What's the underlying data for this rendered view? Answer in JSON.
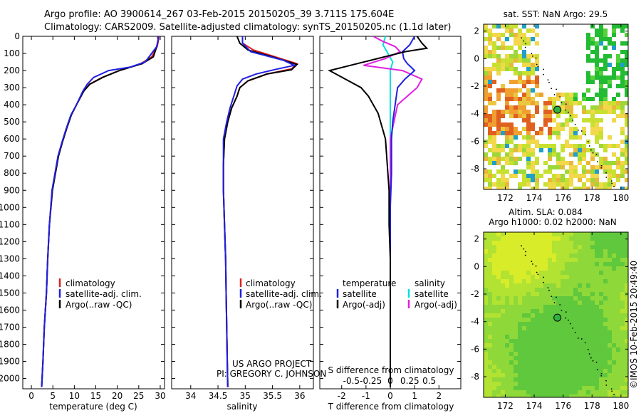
{
  "header": {
    "title": "Argo profile: AO 3900614_267 03-Feb-2015 20150205_39 3.711S 175.604E",
    "subtitle": "Climatology: CARS2009. Satellite-adjusted climatology: synTS_20150205.nc (1.1d later)"
  },
  "credit": {
    "line1": "US ARGO PROJECT",
    "line2": "PI: GREGORY C. JOHNSON"
  },
  "stamp": "©IMOS 10-Feb-2015 20:49:40",
  "colors": {
    "clim": "#e02020",
    "sat": "#2020e0",
    "argo": "#000000",
    "satS": "#00e0e0",
    "argoS": "#e020e0"
  },
  "depth_ticks": [
    0,
    100,
    200,
    300,
    400,
    500,
    600,
    700,
    800,
    900,
    1000,
    1100,
    1200,
    1300,
    1400,
    1500,
    1600,
    1700,
    1800,
    1900,
    2000
  ],
  "legend_profile": [
    "climatology",
    "satellite-adj. clim.",
    "Argo(..raw -QC)"
  ],
  "legend_diff": {
    "head_t": "temperature",
    "head_s": "salinity",
    "sat_t": "satellite",
    "argo_t": "Argo(-adj)",
    "sat_s": "satellite",
    "argo_s": "Argo(-adj)"
  },
  "chart_data": [
    {
      "type": "line",
      "xlabel": "temperature (deg C)",
      "xlim": [
        -2,
        31
      ],
      "ylim": [
        2060,
        0
      ],
      "xticks": [
        0,
        5,
        10,
        15,
        20,
        25,
        30
      ],
      "series": [
        {
          "name": "climatology",
          "x": [
            29.7,
            29.6,
            29.3,
            28.0,
            25.5,
            20.5,
            16.5,
            13.5,
            12.2,
            10.5,
            9.3,
            8.2,
            7.2,
            6.3,
            4.9,
            4.2,
            3.8,
            3.5,
            3.0,
            2.7,
            2.5,
            2.4
          ],
          "y": [
            0,
            20,
            60,
            120,
            160,
            200,
            240,
            280,
            320,
            400,
            460,
            540,
            620,
            700,
            900,
            1100,
            1300,
            1500,
            1700,
            1900,
            2000,
            2050
          ]
        },
        {
          "name": "satellite-adj. clim.",
          "x": [
            29.4,
            29.5,
            29.2,
            28.4,
            25.8,
            20.5,
            16.6,
            13.6,
            12.2,
            10.5,
            9.3,
            8.2,
            7.2,
            6.3,
            4.9,
            4.2,
            3.8,
            3.5,
            3.0,
            2.7,
            2.5,
            2.4
          ],
          "y": [
            0,
            20,
            60,
            120,
            160,
            200,
            240,
            280,
            320,
            400,
            460,
            540,
            620,
            700,
            900,
            1100,
            1300,
            1500,
            1700,
            1900,
            2000,
            2050
          ]
        },
        {
          "name": "Argo(..raw -QC)",
          "x": [
            29.5,
            29.5,
            29.2,
            26.5,
            23.0,
            18.0,
            14.5,
            13.0,
            12.0,
            10.5,
            9.2,
            8.1,
            7.1,
            6.2,
            4.8,
            4.2,
            3.8,
            3.5,
            3.0,
            2.7,
            2.5,
            2.4
          ],
          "y": [
            0,
            20,
            60,
            150,
            180,
            200,
            240,
            280,
            320,
            400,
            460,
            540,
            620,
            700,
            900,
            1100,
            1300,
            1500,
            1700,
            1900,
            2000,
            2050
          ]
        }
      ]
    },
    {
      "type": "line",
      "xlabel": "salinity",
      "xlim": [
        33.65,
        36.25
      ],
      "ylim": [
        2060,
        0
      ],
      "xticks": [
        34,
        34.5,
        35,
        35.5,
        36
      ],
      "series": [
        {
          "name": "climatology",
          "x": [
            34.95,
            34.95,
            35.15,
            35.55,
            35.95,
            35.85,
            35.4,
            35.05,
            34.9,
            34.85,
            34.75,
            34.68,
            34.62,
            34.6,
            34.6,
            34.62,
            34.64,
            34.65,
            34.66,
            34.67,
            34.68
          ],
          "y": [
            0,
            40,
            80,
            120,
            160,
            190,
            220,
            260,
            300,
            350,
            420,
            500,
            600,
            750,
            900,
            1100,
            1300,
            1500,
            1700,
            1900,
            2050
          ]
        },
        {
          "name": "satellite-adj. clim.",
          "x": [
            34.85,
            34.9,
            35.05,
            35.5,
            35.95,
            35.85,
            35.4,
            35.05,
            34.9,
            34.85,
            34.75,
            34.68,
            34.62,
            34.6,
            34.6,
            34.62,
            34.64,
            34.65,
            34.66,
            34.67,
            34.68
          ],
          "y": [
            0,
            40,
            80,
            120,
            165,
            195,
            220,
            260,
            300,
            350,
            420,
            500,
            600,
            750,
            900,
            1100,
            1300,
            1500,
            1700,
            1900,
            2050
          ]
        },
        {
          "name": "Argo(..raw -QC)",
          "x": [
            34.95,
            34.95,
            35.1,
            35.7,
            35.9,
            35.6,
            35.2,
            34.95,
            34.85,
            34.8,
            34.72,
            34.66,
            34.6,
            34.6,
            34.6,
            34.62,
            34.64,
            34.65,
            34.66,
            34.67,
            34.68
          ],
          "y": [
            0,
            40,
            90,
            140,
            170,
            190,
            220,
            250,
            290,
            340,
            420,
            500,
            600,
            750,
            900,
            1100,
            1300,
            1500,
            1700,
            1900,
            2050
          ]
        }
      ]
    },
    {
      "type": "line",
      "xlabel": "T difference from climatology",
      "x2label": "S difference from climatology",
      "xlim": [
        -2.9,
        2.9
      ],
      "ylim": [
        2060,
        0
      ],
      "xticks": [
        -2,
        -1,
        0,
        1,
        2
      ],
      "x2ticks_label": [
        "-0.5",
        "-0.25",
        "0",
        "0.25",
        "0.5"
      ],
      "series": [
        {
          "name": "T satellite",
          "x": [
            1.0,
            0.8,
            0.5,
            0.55,
            0.7,
            1.0,
            0.6,
            0.3,
            0.2,
            0.1,
            0.05,
            0.05,
            0.0,
            0.0,
            0.0
          ],
          "y": [
            0,
            50,
            90,
            130,
            160,
            200,
            250,
            300,
            400,
            500,
            600,
            800,
            1000,
            1500,
            2050
          ]
        },
        {
          "name": "T Argo(-adj)",
          "x": [
            1.1,
            1.3,
            1.5,
            0.6,
            -0.8,
            -2.5,
            -1.2,
            -0.9,
            -0.7,
            -0.5,
            -0.4,
            -0.3,
            -0.2,
            -0.15,
            -0.1,
            -0.05,
            -0.05,
            0.0,
            0.0
          ],
          "y": [
            0,
            40,
            70,
            90,
            140,
            200,
            300,
            350,
            400,
            450,
            500,
            550,
            600,
            700,
            800,
            900,
            1100,
            1300,
            2050
          ]
        },
        {
          "name": "S satellite",
          "x": [
            -0.2,
            -0.3,
            -0.1,
            0.1,
            0.0,
            0.0,
            0.0,
            0.0
          ],
          "y": [
            0,
            50,
            100,
            150,
            200,
            400,
            900,
            2050
          ]
        },
        {
          "name": "S Argo(-adj)",
          "x": [
            -0.7,
            -0.3,
            0.2,
            0.4,
            -0.2,
            -1.1,
            0.5,
            1.3,
            1.1,
            0.3,
            0.0,
            0.0
          ],
          "y": [
            0,
            30,
            60,
            90,
            130,
            170,
            200,
            250,
            300,
            400,
            600,
            2050
          ]
        }
      ]
    },
    {
      "type": "heatmap",
      "title": "sat. SST: NaN Argo: 29.5",
      "xlim": [
        170.5,
        180.5
      ],
      "ylim": [
        -9.5,
        2.5
      ],
      "xticks": [
        172,
        174,
        176,
        178,
        180
      ],
      "yticks": [
        -8,
        -6,
        -4,
        -2,
        0,
        2
      ],
      "point": {
        "lon": 175.604,
        "lat": -3.711
      }
    },
    {
      "type": "heatmap",
      "title": "Altim. SLA: 0.084",
      "subtitle": "Argo h1000: 0.02 h2000: NaN",
      "xlim": [
        170.5,
        180.5
      ],
      "ylim": [
        -9.5,
        2.5
      ],
      "xticks": [
        172,
        174,
        176,
        178,
        180
      ],
      "yticks": [
        -8,
        -6,
        -4,
        -2,
        0,
        2
      ],
      "point": {
        "lon": 175.604,
        "lat": -3.711
      }
    }
  ]
}
